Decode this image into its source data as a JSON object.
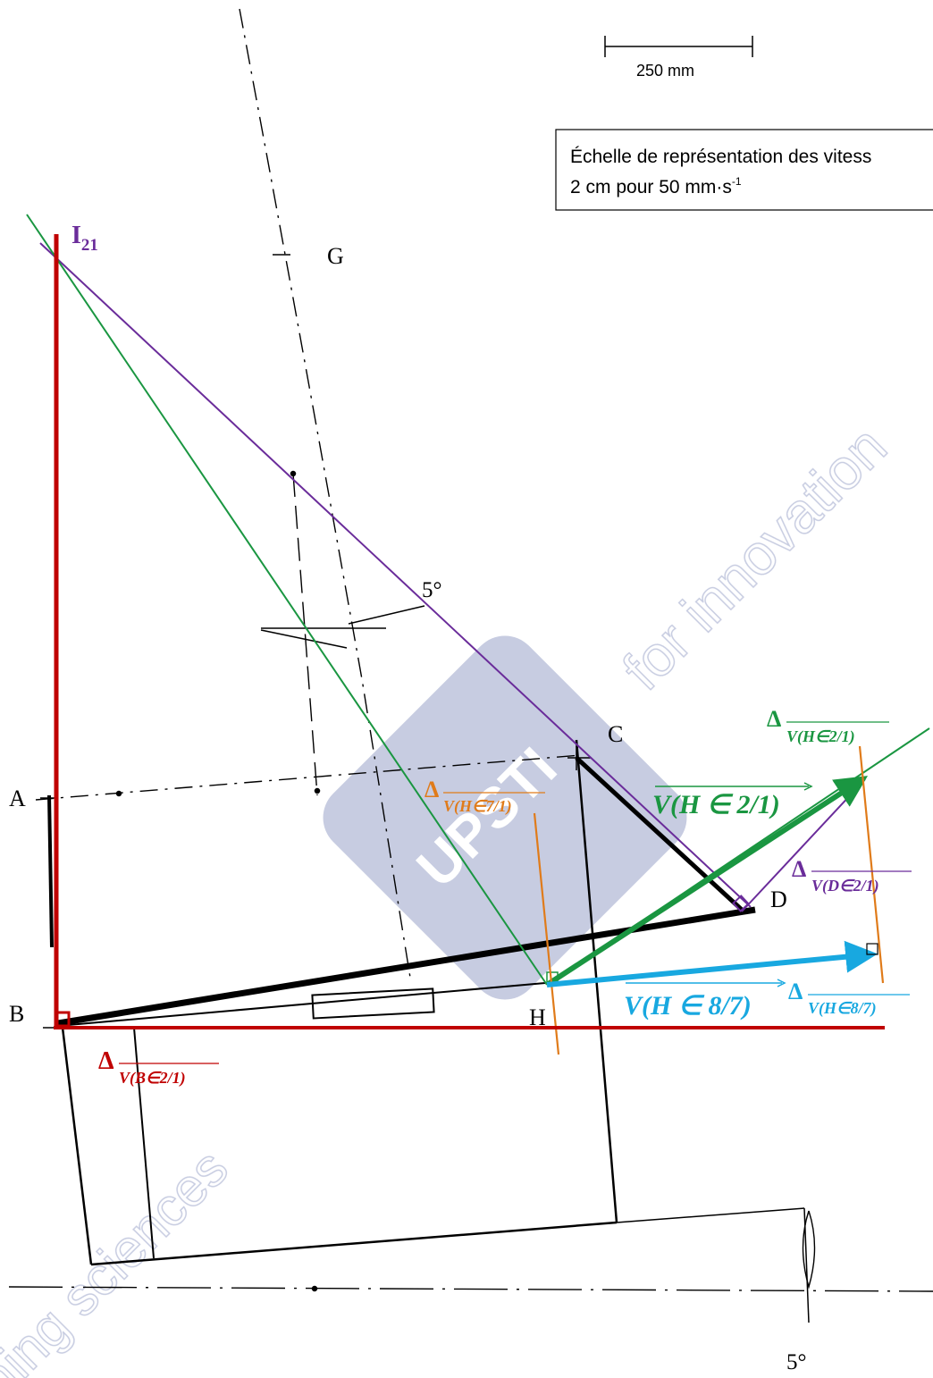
{
  "scale_bar": {
    "label": "250 mm"
  },
  "speed_scale": {
    "line1": "Échelle de représentation des vitess",
    "line2_prefix": "2 cm pour 50  mm·s",
    "line2_exp": "-1"
  },
  "points": {
    "I21_main": "I",
    "I21_sub": "21",
    "G": "G",
    "A": "A",
    "B": "B",
    "C": "C",
    "D": "D",
    "H": "H"
  },
  "angles": {
    "upper": "5°",
    "bottom": "5°"
  },
  "vectors": {
    "v_H_2_1": "V(H ∈ 2/1)",
    "v_H_8_7": "V(H ∈ 8/7)"
  },
  "deltas": {
    "delta_symbol": "Δ",
    "B_2_1": "V(B∈2/1)",
    "H_7_1": "V(H∈7/1)",
    "H_2_1": "V(H∈2/1)",
    "D_2_1": "V(D∈2/1)",
    "H_8_7": "V(H∈8/7)"
  },
  "colors": {
    "red": "#c00000",
    "green": "#1a9641",
    "purple": "#6a2c9a",
    "orange": "#e07b1a",
    "cyan": "#18a8e0",
    "black": "#000000",
    "watermark": "#9aa3c8"
  },
  "watermark": {
    "logo_text": "UPSTI",
    "diagonal_text": "for innovation",
    "bottom_text": "ning sciences"
  }
}
